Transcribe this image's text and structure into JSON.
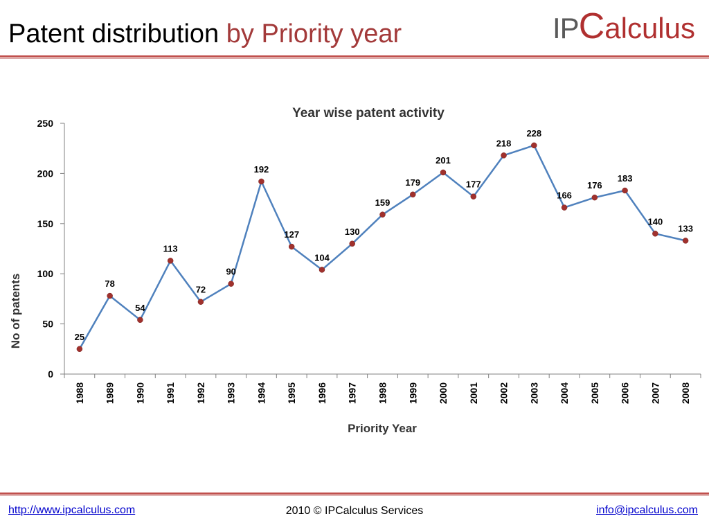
{
  "header": {
    "title_main": "Patent distribution",
    "title_accent": "by Priority year",
    "logo_ip": "IP",
    "logo_c": "C",
    "logo_rest": "alculus"
  },
  "footer": {
    "left_link": "http://www.ipcalculus.com",
    "center_text": "2010 © IPCalculus Services",
    "right_link": "info@ipcalculus.com"
  },
  "colors": {
    "line": "#4f81bd",
    "marker": "#a0312d",
    "accent": "#c0504d"
  },
  "chart_data": {
    "type": "line",
    "title": "Year wise patent activity",
    "xlabel": "Priority Year",
    "ylabel": "No of patents",
    "ylim": [
      0,
      250
    ],
    "yticks": [
      0,
      50,
      100,
      150,
      200,
      250
    ],
    "grid": false,
    "legend": "none",
    "categories": [
      "1988",
      "1989",
      "1990",
      "1991",
      "1992",
      "1993",
      "1994",
      "1995",
      "1996",
      "1997",
      "1998",
      "1999",
      "2000",
      "2001",
      "2002",
      "2003",
      "2004",
      "2005",
      "2006",
      "2007",
      "2008"
    ],
    "series": [
      {
        "values": [
          25,
          78,
          54,
          113,
          72,
          90,
          192,
          127,
          104,
          130,
          159,
          179,
          201,
          177,
          218,
          228,
          166,
          176,
          183,
          140,
          133
        ]
      }
    ]
  }
}
